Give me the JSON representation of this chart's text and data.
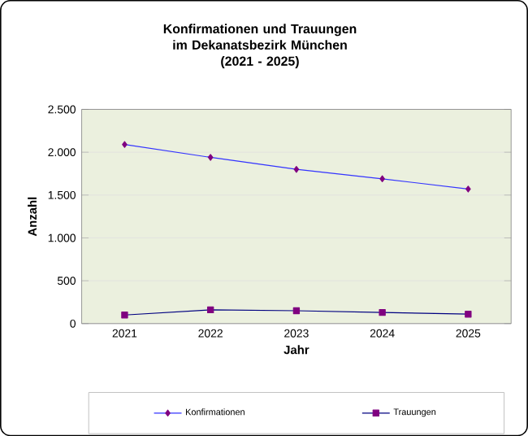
{
  "chart_data": {
    "type": "line",
    "title": "Konfirmationen und Trauungen\nim Dekanatsbezirk München\n(2021 - 2025)",
    "xlabel": "Jahr",
    "ylabel": "Anzahl",
    "categories": [
      "2021",
      "2022",
      "2023",
      "2024",
      "2025"
    ],
    "series": [
      {
        "name": "Konfirmationen",
        "color": "#3333ff",
        "marker": "diamond",
        "values": [
          2090,
          1940,
          1800,
          1690,
          1570
        ]
      },
      {
        "name": "Trauungen",
        "color": "#000080",
        "marker": "square",
        "values": [
          100,
          160,
          150,
          130,
          110
        ]
      }
    ],
    "ylim": [
      0,
      2500
    ],
    "yticks": [
      {
        "value": 0,
        "label": "0"
      },
      {
        "value": 500,
        "label": "500"
      },
      {
        "value": 1000,
        "label": "1.000"
      },
      {
        "value": 1500,
        "label": "1.500"
      },
      {
        "value": 2000,
        "label": "2.000"
      },
      {
        "value": 2500,
        "label": "2.500"
      }
    ],
    "grid": "y",
    "legend": "bottom",
    "line_style": "solid"
  }
}
